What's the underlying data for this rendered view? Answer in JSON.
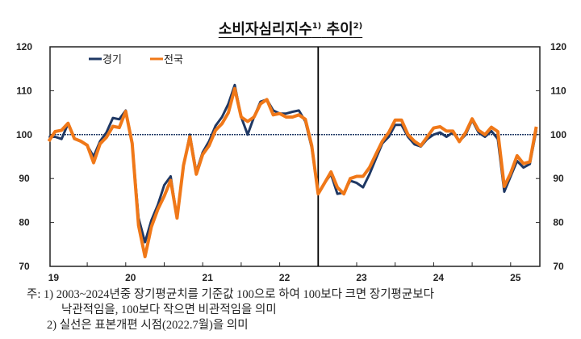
{
  "chart_data": {
    "type": "line",
    "title": "소비자심리지수",
    "title_sup1": "1)",
    "title_suffix": "추이",
    "title_sup2": "2)",
    "ylim": [
      70,
      120
    ],
    "yticks": [
      "70",
      "80",
      "90",
      "100",
      "110",
      "120"
    ],
    "xtick_labels": [
      "19",
      "20",
      "21",
      "22",
      "23",
      "24",
      "25"
    ],
    "reference_line": 100,
    "vertical_marker": "2022.7",
    "legend_position": "top-left",
    "x": [
      "2019-01",
      "2019-02",
      "2019-03",
      "2019-04",
      "2019-05",
      "2019-06",
      "2019-07",
      "2019-08",
      "2019-09",
      "2019-10",
      "2019-11",
      "2019-12",
      "2020-01",
      "2020-02",
      "2020-03",
      "2020-04",
      "2020-05",
      "2020-06",
      "2020-07",
      "2020-08",
      "2020-09",
      "2020-10",
      "2020-11",
      "2020-12",
      "2021-01",
      "2021-02",
      "2021-03",
      "2021-04",
      "2021-05",
      "2021-06",
      "2021-07",
      "2021-08",
      "2021-09",
      "2021-10",
      "2021-11",
      "2021-12",
      "2022-01",
      "2022-02",
      "2022-03",
      "2022-04",
      "2022-05",
      "2022-06",
      "2022-07",
      "2022-08",
      "2022-09",
      "2022-10",
      "2022-11",
      "2022-12",
      "2023-01",
      "2023-02",
      "2023-03",
      "2023-04",
      "2023-05",
      "2023-06",
      "2023-07",
      "2023-08",
      "2023-09",
      "2023-10",
      "2023-11",
      "2023-12",
      "2024-01",
      "2024-02",
      "2024-03",
      "2024-04",
      "2024-05",
      "2024-06",
      "2024-07",
      "2024-08",
      "2024-09",
      "2024-10",
      "2024-11",
      "2024-12",
      "2025-01",
      "2025-02",
      "2025-03",
      "2025-04",
      "2025-05"
    ],
    "series": [
      {
        "name": "경기",
        "color": "#1f3864",
        "values": [
          99.5,
          99.5,
          99,
          102.5,
          99,
          98.5,
          97.5,
          95,
          98.5,
          100.5,
          103.8,
          103.5,
          105.5,
          98,
          81,
          75.5,
          80.5,
          84,
          88.5,
          90.5,
          81,
          93,
          100,
          91.5,
          96,
          98.5,
          102,
          104,
          107,
          111.3,
          104,
          100,
          104,
          107.5,
          108,
          105.5,
          104.8,
          104.8,
          105.2,
          105.5,
          103,
          97,
          86.5,
          89,
          91,
          86.5,
          86.8,
          89.5,
          89,
          88,
          91,
          94.5,
          98,
          99.5,
          102.2,
          102.2,
          99.5,
          97.8,
          97.3,
          99,
          100,
          100.5,
          99.5,
          100.5,
          98.5,
          100,
          103.3,
          100.5,
          99.5,
          100.8,
          99,
          87,
          90.5,
          94,
          92.5,
          93.3,
          101
        ]
      },
      {
        "name": "전국",
        "color": "#f07818",
        "values": [
          98.5,
          100.7,
          101,
          102.6,
          99.1,
          98.5,
          97.6,
          93.6,
          97.9,
          99.4,
          101.9,
          101.6,
          105.3,
          98,
          79.3,
          72.2,
          79,
          83,
          86,
          89.6,
          81,
          93,
          99.5,
          91,
          95.5,
          97.5,
          101,
          102.5,
          105,
          110.5,
          104,
          103,
          104,
          107,
          108,
          104.5,
          104.8,
          104,
          104,
          104.5,
          103.5,
          97.5,
          86.5,
          89,
          91.5,
          88,
          86.5,
          90,
          90.5,
          90.5,
          92.5,
          95.5,
          98.5,
          100.5,
          103.3,
          103.3,
          100,
          98.5,
          97.5,
          99.5,
          101.5,
          101.8,
          100.8,
          100.8,
          98.4,
          100.5,
          103.6,
          101,
          100,
          101.7,
          100.7,
          88.2,
          91.2,
          95.2,
          93.4,
          93.8,
          101.8
        ]
      }
    ]
  },
  "notes": {
    "line1": "주:  1)  2003~2024년중 장기평균치를 기준값 100으로 하여 100보다 크면 장기평균보다",
    "line2": "낙관적임을, 100보다 작으면 비관적임을 의미",
    "line3": "2)  실선은 표본개편 시점(2022.7월)을 의미"
  }
}
